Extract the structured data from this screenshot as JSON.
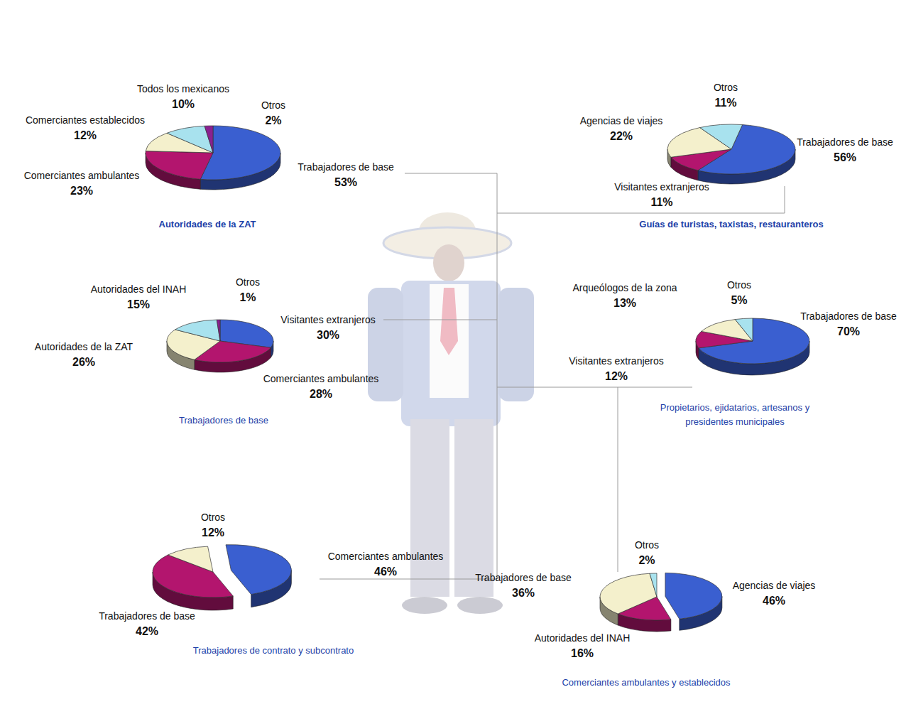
{
  "chart_data": [
    {
      "type": "pie",
      "title": "Autoridades de la ZAT",
      "categories": [
        "Trabajadores de base",
        "Comerciantes ambulantes",
        "Comerciantes establecidos",
        "Todos los mexicanos",
        "Otros"
      ],
      "values": [
        53,
        23,
        12,
        10,
        2
      ],
      "value_labels": [
        "53%",
        "23%",
        "12%",
        "10%",
        "2%"
      ],
      "colors": [
        "#3a5fd0",
        "#b3156e",
        "#f4f0cc",
        "#a8e2ee",
        "#8a2090"
      ],
      "data_labels": true
    },
    {
      "type": "pie",
      "title": "Guías de turistas, taxistas, restauranteros",
      "categories": [
        "Trabajadores de base",
        "Visitantes extranjeros",
        "Agencias de viajes",
        "Otros"
      ],
      "values": [
        56,
        11,
        22,
        11
      ],
      "value_labels": [
        "56%",
        "11%",
        "22%",
        "11%"
      ],
      "colors": [
        "#3a5fd0",
        "#b3156e",
        "#f4f0cc",
        "#a8e2ee"
      ],
      "data_labels": true
    },
    {
      "type": "pie",
      "title": "Trabajadores de base",
      "categories": [
        "Visitantes extranjeros",
        "Comerciantes ambulantes",
        "Autoridades de la ZAT",
        "Autoridades del INAH",
        "Otros"
      ],
      "values": [
        30,
        28,
        26,
        15,
        1
      ],
      "value_labels": [
        "30%",
        "28%",
        "26%",
        "15%",
        "1%"
      ],
      "colors": [
        "#3a5fd0",
        "#b3156e",
        "#f4f0cc",
        "#a8e2ee",
        "#8a2090"
      ],
      "data_labels": true
    },
    {
      "type": "pie",
      "title": "Propietarios, ejidatarios, artesanos y presidentes municipales",
      "categories": [
        "Trabajadores de base",
        "Visitantes extranjeros",
        "Arqueólogos de la zona",
        "Otros"
      ],
      "values": [
        70,
        12,
        13,
        5
      ],
      "value_labels": [
        "70%",
        "12%",
        "13%",
        "5%"
      ],
      "colors": [
        "#3a5fd0",
        "#b3156e",
        "#f4f0cc",
        "#a8e2ee"
      ],
      "data_labels": true
    },
    {
      "type": "pie",
      "title": "Trabajadores de contrato y subcontrato",
      "categories": [
        "Comerciantes ambulantes",
        "Trabajadores de base",
        "Otros"
      ],
      "values": [
        46,
        42,
        12
      ],
      "value_labels": [
        "46%",
        "42%",
        "12%"
      ],
      "colors": [
        "#3a5fd0",
        "#b3156e",
        "#f4f0cc"
      ],
      "data_labels": true
    },
    {
      "type": "pie",
      "title": "Comerciantes ambulantes y establecidos",
      "categories": [
        "Agencias de viajes",
        "Autoridades del INAH",
        "Trabajadores de base",
        "Otros"
      ],
      "values": [
        46,
        16,
        36,
        2
      ],
      "value_labels": [
        "46%",
        "16%",
        "36%",
        "2%"
      ],
      "colors": [
        "#3a5fd0",
        "#b3156e",
        "#f4f0cc",
        "#a8e2ee"
      ],
      "data_labels": true
    }
  ]
}
